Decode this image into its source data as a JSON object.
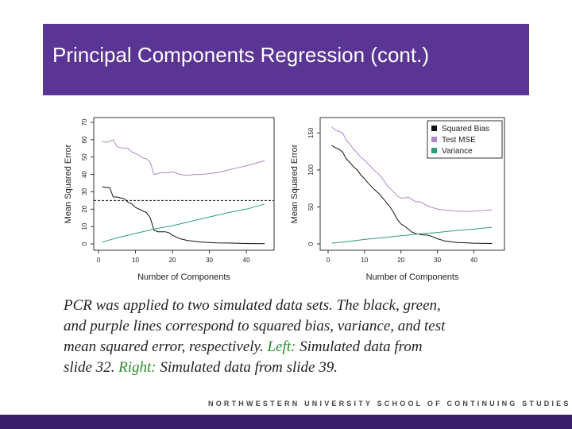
{
  "slide": {
    "title": "Principal Components Regression (cont.)",
    "caption": {
      "line1": "PCR was applied to two simulated data sets. The black, green,",
      "line2": "and purple lines correspond to squared bias, variance, and test",
      "line3_pre": "mean squared error, respectively. ",
      "left_label": "Left:",
      "line3_post": " Simulated data from",
      "line4_pre": "slide 32. ",
      "right_label": "Right:",
      "line4_post": " Simulated data from slide 39."
    },
    "footer": "NORTHWESTERN UNIVERSITY SCHOOL OF CONTINUING STUDIES"
  },
  "colors": {
    "title_bar": "#5b3594",
    "footer_bar": "#3a1f6b",
    "bias": "#111111",
    "mse": "#b088c8",
    "variance": "#2e9e7a",
    "caption_highlight": "#2e8b2e"
  },
  "chart_data": [
    {
      "type": "line",
      "xlabel": "Number of Components",
      "ylabel": "Mean Squared Error",
      "xlim": [
        0,
        46
      ],
      "ylim": [
        0,
        70
      ],
      "xticks": [
        0,
        10,
        20,
        30,
        40
      ],
      "yticks": [
        0,
        10,
        20,
        30,
        40,
        50,
        60,
        70
      ],
      "hline": 25,
      "series": [
        {
          "key": "bias",
          "x": [
            1,
            2,
            3,
            4,
            5,
            6,
            7,
            8,
            9,
            10,
            11,
            12,
            13,
            14,
            15,
            16,
            17,
            18,
            19,
            20,
            22,
            24,
            26,
            28,
            30,
            32,
            35,
            38,
            41,
            45
          ],
          "values": [
            33,
            32.5,
            32.5,
            27,
            27,
            26.5,
            26,
            24,
            23,
            21,
            20,
            19,
            18,
            15,
            8,
            7,
            7,
            7,
            6.5,
            5,
            3,
            2,
            1.5,
            1,
            0.8,
            0.6,
            0.5,
            0.3,
            0.2,
            0.1
          ]
        },
        {
          "key": "mse",
          "x": [
            1,
            2,
            3,
            4,
            5,
            6,
            7,
            8,
            9,
            10,
            11,
            12,
            13,
            14,
            15,
            16,
            17,
            18,
            19,
            20,
            22,
            24,
            26,
            28,
            30,
            32,
            35,
            38,
            41,
            45
          ],
          "values": [
            59,
            58.5,
            59,
            60,
            56,
            55.5,
            55,
            55,
            53,
            52,
            51,
            49.5,
            49,
            47,
            40,
            40.5,
            41,
            41,
            41,
            41.5,
            40,
            39.5,
            40,
            40,
            40.5,
            41,
            42.5,
            44,
            45.5,
            48
          ]
        },
        {
          "key": "variance",
          "x": [
            1,
            5,
            10,
            15,
            20,
            25,
            30,
            35,
            40,
            45
          ],
          "values": [
            1,
            3.5,
            6,
            8.5,
            10.5,
            13,
            15.5,
            18,
            20,
            23
          ]
        }
      ]
    },
    {
      "type": "line",
      "xlabel": "Number of Components",
      "ylabel": "Mean Squared Error",
      "xlim": [
        0,
        46
      ],
      "ylim": [
        0,
        160
      ],
      "xticks": [
        0,
        10,
        20,
        30,
        40
      ],
      "yticks": [
        0,
        50,
        100,
        150
      ],
      "legend": [
        "Squared Bias",
        "Test MSE",
        "Variance"
      ],
      "legend_position": "top-right",
      "series": [
        {
          "key": "bias",
          "name": "Squared Bias",
          "x": [
            1,
            2,
            3,
            4,
            5,
            6,
            7,
            8,
            9,
            10,
            11,
            12,
            13,
            14,
            15,
            16,
            17,
            18,
            19,
            20,
            21,
            22,
            23,
            24,
            25,
            26,
            27,
            28,
            30,
            32,
            35,
            40,
            45
          ],
          "values": [
            133,
            130,
            128,
            124,
            115,
            110,
            104,
            100,
            93,
            88,
            82,
            77,
            72,
            68,
            62,
            56,
            50,
            42,
            33,
            27,
            24,
            20,
            16,
            14,
            13,
            12,
            12,
            11,
            7,
            4,
            2,
            1,
            0.5
          ]
        },
        {
          "key": "mse",
          "name": "Test MSE",
          "x": [
            1,
            2,
            3,
            4,
            5,
            6,
            7,
            8,
            9,
            10,
            11,
            12,
            13,
            14,
            15,
            16,
            17,
            18,
            19,
            20,
            21,
            22,
            23,
            24,
            25,
            26,
            27,
            28,
            30,
            32,
            34,
            36,
            38,
            40,
            42,
            45
          ],
          "values": [
            158,
            154,
            152,
            150,
            140,
            135,
            128,
            123,
            117,
            113,
            108,
            103,
            98,
            94,
            88,
            80,
            75,
            70,
            65,
            62,
            62,
            63,
            60,
            57,
            57,
            55,
            52,
            50,
            47,
            46,
            45,
            44,
            44,
            44,
            45,
            46
          ]
        },
        {
          "key": "variance",
          "name": "Variance",
          "x": [
            1,
            5,
            10,
            15,
            20,
            25,
            30,
            35,
            40,
            45
          ],
          "values": [
            1,
            3,
            6,
            8.5,
            11,
            13.5,
            15.5,
            18,
            20,
            22.5
          ]
        }
      ]
    }
  ]
}
